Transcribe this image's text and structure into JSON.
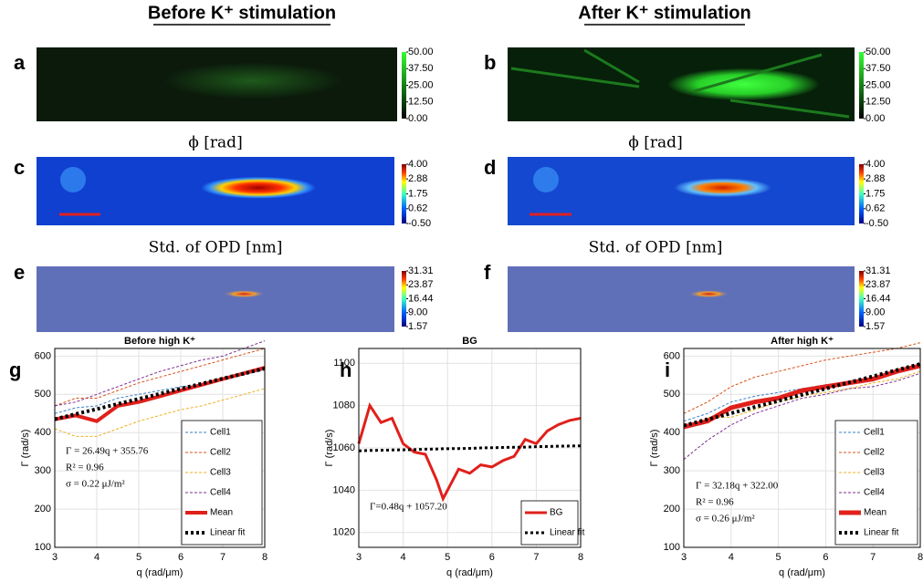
{
  "headers": [
    "Before K⁺ stimulation",
    "After K⁺ stimulation"
  ],
  "panel_labels": [
    "a",
    "b",
    "c",
    "d",
    "e",
    "f"
  ],
  "image_captions": [
    "ϕ [rad]",
    "ϕ [rad]",
    "Std. of OPD [nm]",
    "Std. of OPD [nm]"
  ],
  "colorbars": [
    {
      "colormap": "green",
      "lim": [
        0,
        50
      ],
      "ticks": [
        {
          "value": 50,
          "label": "50.00"
        },
        {
          "value": 37.5,
          "label": "37.50"
        },
        {
          "value": 25,
          "label": "25.00"
        },
        {
          "value": 12.5,
          "label": "12.50"
        },
        {
          "value": 0,
          "label": "0.00"
        }
      ]
    },
    {
      "colormap": "green",
      "lim": [
        0,
        50
      ],
      "ticks": [
        {
          "value": 50,
          "label": "50.00"
        },
        {
          "value": 37.5,
          "label": "37.50"
        },
        {
          "value": 25,
          "label": "25.00"
        },
        {
          "value": 12.5,
          "label": "12.50"
        },
        {
          "value": 0,
          "label": "0.00"
        }
      ]
    },
    {
      "colormap": "jet",
      "lim": [
        -0.5,
        4
      ],
      "ticks": [
        {
          "value": 4,
          "label": "4.00"
        },
        2.88,
        1.75,
        0.62,
        {
          "value": -0.5,
          "label": "-0.50"
        }
      ]
    },
    {
      "colormap": "jet",
      "lim": [
        -0.5,
        4
      ],
      "ticks": [
        {
          "value": 4,
          "label": "4.00"
        },
        2.88,
        1.75,
        0.62,
        {
          "value": -0.5,
          "label": "-0.50"
        }
      ]
    },
    {
      "colormap": "jet",
      "lim": [
        1.57,
        31.31
      ],
      "ticks": [
        31.31,
        23.87,
        16.44,
        {
          "value": 9,
          "label": "9.00"
        },
        1.57
      ]
    },
    {
      "colormap": "jet",
      "lim": [
        1.57,
        31.31
      ],
      "ticks": [
        31.31,
        23.87,
        16.44,
        {
          "value": 9,
          "label": "9.00"
        },
        1.57
      ]
    }
  ],
  "chart_data": [
    {
      "type": "line",
      "panel": "g",
      "title": "Before high K⁺",
      "xlabel": "q (rad/μm)",
      "ylabel": "Γ (rad/s)",
      "x": [
        3,
        3.5,
        4,
        4.5,
        5,
        5.5,
        6,
        6.5,
        7,
        7.5,
        8
      ],
      "xlim": [
        3,
        8
      ],
      "xticks": [
        3,
        4,
        5,
        6,
        7,
        8
      ],
      "ylim": [
        100,
        620
      ],
      "yticks": [
        100,
        200,
        300,
        400,
        500,
        600
      ],
      "legend": "lower right",
      "annotations": [
        "Γ = 26.49q + 355.76",
        "R² = 0.96",
        "σ = 0.22 μJ/m²"
      ],
      "series": [
        {
          "name": "Cell1",
          "color": "#3a7fc4",
          "style": "dashed",
          "width": 1,
          "values": [
            450,
            465,
            470,
            490,
            500,
            510,
            520,
            525,
            540,
            550,
            565
          ]
        },
        {
          "name": "Cell2",
          "color": "#d95319",
          "style": "dashed",
          "width": 1,
          "values": [
            470,
            490,
            490,
            510,
            530,
            545,
            560,
            575,
            590,
            605,
            620
          ]
        },
        {
          "name": "Cell3",
          "color": "#edb120",
          "style": "dashed",
          "width": 1,
          "values": [
            410,
            390,
            390,
            410,
            430,
            445,
            460,
            470,
            485,
            500,
            515
          ]
        },
        {
          "name": "Cell4",
          "color": "#7e2f8e",
          "style": "dashed",
          "width": 1,
          "values": [
            470,
            480,
            500,
            520,
            540,
            560,
            575,
            590,
            600,
            620,
            640
          ]
        },
        {
          "name": "Mean",
          "color": "#e0201b",
          "style": "solid",
          "width": 4,
          "values": [
            435,
            445,
            430,
            470,
            480,
            495,
            510,
            525,
            540,
            555,
            570
          ]
        },
        {
          "name": "Linear fit",
          "color": "#000000",
          "style": "dotted",
          "width": 4,
          "values": [
            435.2,
            448.5,
            461.7,
            475,
            488.2,
            501.5,
            514.7,
            528,
            541.2,
            554.4,
            567.7
          ]
        }
      ]
    },
    {
      "type": "line",
      "panel": "h",
      "title": "BG",
      "xlabel": "q (rad/μm)",
      "ylabel": "Γ (rad/s)",
      "x": [
        3,
        3.25,
        3.5,
        3.75,
        4,
        4.25,
        4.5,
        4.75,
        4.9,
        5.25,
        5.5,
        5.75,
        6,
        6.25,
        6.5,
        6.75,
        7,
        7.25,
        7.5,
        7.75,
        8
      ],
      "xlim": [
        3,
        8
      ],
      "xticks": [
        3,
        4,
        5,
        6,
        7,
        8
      ],
      "ylim": [
        1013,
        1107
      ],
      "yticks": [
        1020,
        1040,
        1060,
        1080,
        1100
      ],
      "legend": "lower right",
      "annotations": [
        "Γ=0.48q + 1057.20"
      ],
      "series": [
        {
          "name": "BG",
          "color": "#e0201b",
          "style": "solid",
          "width": 3,
          "values": [
            1062,
            1080,
            1072,
            1074,
            1062,
            1058,
            1057,
            1045,
            1036,
            1050,
            1048,
            1052,
            1051,
            1054,
            1056,
            1064,
            1062,
            1068,
            1071,
            1073,
            1074
          ]
        },
        {
          "name": "Linear fit",
          "color": "#000000",
          "style": "dotted",
          "width": 3,
          "values": [
            1058.6,
            1058.8,
            1058.9,
            1059,
            1059.1,
            1059.2,
            1059.4,
            1059.5,
            1059.6,
            1059.7,
            1059.8,
            1060,
            1060.1,
            1060.2,
            1060.3,
            1060.4,
            1060.6,
            1060.7,
            1060.8,
            1060.9,
            1061
          ]
        }
      ]
    },
    {
      "type": "line",
      "panel": "i",
      "title": "After high K⁺",
      "xlabel": "q (rad/μm)",
      "ylabel": "Γ (rad/s)",
      "x": [
        3,
        3.5,
        4,
        4.5,
        5,
        5.5,
        6,
        6.5,
        7,
        7.5,
        8
      ],
      "xlim": [
        3,
        8
      ],
      "xticks": [
        3,
        4,
        5,
        6,
        7,
        8
      ],
      "ylim": [
        100,
        620
      ],
      "yticks": [
        100,
        200,
        300,
        400,
        500,
        600
      ],
      "legend": "lower right",
      "annotations": [
        "Γ = 32.18q + 322.00",
        "R² = 0.96",
        "σ = 0.26 μJ/m²"
      ],
      "series": [
        {
          "name": "Cell1",
          "color": "#3a7fc4",
          "style": "dashed",
          "width": 1,
          "values": [
            430,
            450,
            480,
            495,
            505,
            515,
            525,
            530,
            545,
            560,
            575
          ]
        },
        {
          "name": "Cell2",
          "color": "#d95319",
          "style": "dashed",
          "width": 1,
          "values": [
            450,
            480,
            520,
            545,
            560,
            575,
            590,
            600,
            610,
            620,
            635
          ]
        },
        {
          "name": "Cell3",
          "color": "#edb120",
          "style": "dashed",
          "width": 1,
          "values": [
            410,
            440,
            440,
            460,
            480,
            495,
            505,
            515,
            530,
            540,
            560
          ]
        },
        {
          "name": "Cell4",
          "color": "#7e2f8e",
          "style": "dashed",
          "width": 1,
          "values": [
            330,
            380,
            420,
            450,
            470,
            490,
            500,
            515,
            520,
            535,
            555
          ]
        },
        {
          "name": "Mean",
          "color": "#e0201b",
          "style": "solid",
          "width": 5,
          "values": [
            415,
            430,
            465,
            480,
            490,
            510,
            520,
            530,
            540,
            560,
            575
          ]
        },
        {
          "name": "Linear fit",
          "color": "#000000",
          "style": "dotted",
          "width": 4,
          "values": [
            418.5,
            434.6,
            450.7,
            466.8,
            482.9,
            499,
            515.1,
            531.2,
            547.3,
            563.4,
            579.4
          ]
        }
      ]
    }
  ]
}
